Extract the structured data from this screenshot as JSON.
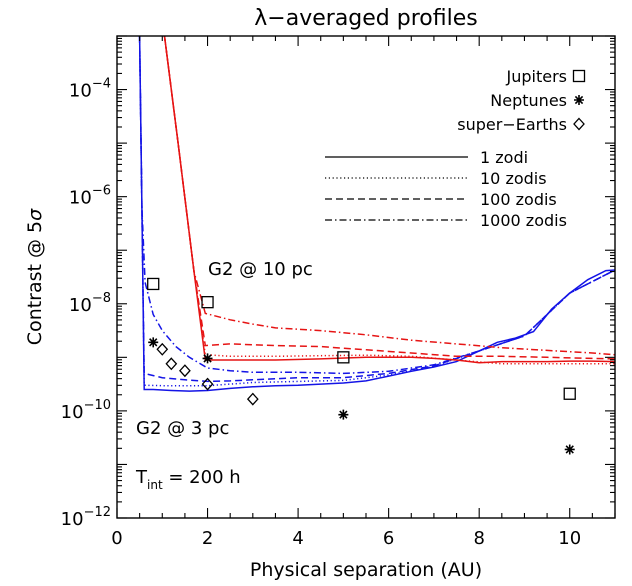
{
  "chart_data": {
    "type": "line",
    "title": "λ−averaged profiles",
    "xlabel": "Physical separation (AU)",
    "ylabel_main": "Contrast @ 5",
    "ylabel_sym": "σ",
    "xlim": [
      0,
      11
    ],
    "ylim_log10": [
      -12,
      -3
    ],
    "x_ticks": [
      0,
      2,
      4,
      6,
      8,
      10
    ],
    "y_tick_labels": [
      {
        "exp": -12,
        "base": "10",
        "pow": "−12"
      },
      {
        "exp": -10,
        "base": "10",
        "pow": "−10"
      },
      {
        "exp": -8,
        "base": "10",
        "pow": "−8"
      },
      {
        "exp": -6,
        "base": "10",
        "pow": "−6"
      },
      {
        "exp": -4,
        "base": "10",
        "pow": "−4"
      }
    ],
    "annotations": {
      "star_10pc": "G2 @ 10 pc",
      "star_3pc": "G2 @ 3 pc",
      "tint_main": "T",
      "tint_sub": "int",
      "tint_value": " = 200 h"
    },
    "planet_legend": [
      {
        "label": "Jupiters",
        "marker": "square"
      },
      {
        "label": "Neptunes",
        "marker": "asterisk"
      },
      {
        "label": "super−Earths",
        "marker": "diamond"
      }
    ],
    "zodi_legend": [
      {
        "label": "1 zodi",
        "dash": "solid"
      },
      {
        "label": "10 zodis",
        "dash": "dotted"
      },
      {
        "label": "100 zodis",
        "dash": "dashed"
      },
      {
        "label": "1000 zodis",
        "dash": "dashdot"
      }
    ],
    "colors": {
      "3pc": "#1414e6",
      "10pc": "#e61414",
      "axes": "#000000"
    },
    "series": [
      {
        "distance": "3pc",
        "zodi": "1 zodi",
        "dash": "solid",
        "points": [
          [
            0.5,
            -3
          ],
          [
            0.55,
            -6.2
          ],
          [
            0.6,
            -9.6
          ],
          [
            0.8,
            -9.6
          ],
          [
            1.2,
            -9.62
          ],
          [
            1.6,
            -9.63
          ],
          [
            2.0,
            -9.62
          ],
          [
            2.5,
            -9.58
          ],
          [
            3.0,
            -9.55
          ],
          [
            3.5,
            -9.53
          ],
          [
            4.0,
            -9.52
          ],
          [
            4.5,
            -9.5
          ],
          [
            5.0,
            -9.48
          ],
          [
            5.5,
            -9.44
          ],
          [
            6.0,
            -9.35
          ],
          [
            6.5,
            -9.26
          ],
          [
            7.0,
            -9.18
          ],
          [
            7.5,
            -9.08
          ],
          [
            8.0,
            -8.88
          ],
          [
            8.4,
            -8.72
          ],
          [
            8.8,
            -8.64
          ],
          [
            9.2,
            -8.52
          ],
          [
            9.6,
            -8.1
          ],
          [
            10.0,
            -7.8
          ],
          [
            10.4,
            -7.55
          ],
          [
            10.8,
            -7.38
          ],
          [
            11.0,
            -7.37
          ]
        ]
      },
      {
        "distance": "3pc",
        "zodi": "10 zodis",
        "dash": "dotted",
        "points": [
          [
            0.5,
            -3
          ],
          [
            0.55,
            -6.2
          ],
          [
            0.6,
            -9.52
          ],
          [
            1.0,
            -9.53
          ],
          [
            1.6,
            -9.53
          ],
          [
            2.0,
            -9.53
          ],
          [
            2.5,
            -9.5
          ],
          [
            3.0,
            -9.47
          ],
          [
            4.0,
            -9.45
          ],
          [
            5.0,
            -9.43
          ],
          [
            6.0,
            -9.33
          ],
          [
            7.0,
            -9.17
          ],
          [
            8.0,
            -8.88
          ],
          [
            9.0,
            -8.6
          ],
          [
            10.0,
            -7.8
          ],
          [
            11.0,
            -7.37
          ]
        ]
      },
      {
        "distance": "3pc",
        "zodi": "100 zodis",
        "dash": "dashed",
        "points": [
          [
            0.5,
            -3
          ],
          [
            0.55,
            -6.2
          ],
          [
            0.6,
            -9.3
          ],
          [
            1.0,
            -9.38
          ],
          [
            1.5,
            -9.42
          ],
          [
            2.0,
            -9.45
          ],
          [
            2.5,
            -9.44
          ],
          [
            3.0,
            -9.42
          ],
          [
            4.0,
            -9.38
          ],
          [
            5.0,
            -9.38
          ],
          [
            6.0,
            -9.3
          ],
          [
            7.0,
            -9.16
          ],
          [
            8.0,
            -8.88
          ],
          [
            9.0,
            -8.6
          ],
          [
            10.0,
            -7.8
          ],
          [
            11.0,
            -7.37
          ]
        ]
      },
      {
        "distance": "3pc",
        "zodi": "1000 zodis",
        "dash": "dashdot",
        "points": [
          [
            0.5,
            -3
          ],
          [
            0.55,
            -6.2
          ],
          [
            0.62,
            -7.6
          ],
          [
            0.8,
            -8.2
          ],
          [
            1.0,
            -8.5
          ],
          [
            1.3,
            -8.8
          ],
          [
            1.6,
            -9.0
          ],
          [
            2.0,
            -9.2
          ],
          [
            2.5,
            -9.25
          ],
          [
            3.0,
            -9.28
          ],
          [
            4.0,
            -9.28
          ],
          [
            5.0,
            -9.3
          ],
          [
            6.0,
            -9.26
          ],
          [
            7.0,
            -9.14
          ],
          [
            8.0,
            -8.88
          ],
          [
            9.0,
            -8.6
          ],
          [
            10.0,
            -7.8
          ],
          [
            11.0,
            -7.37
          ]
        ]
      },
      {
        "distance": "10pc",
        "zodi": "1 zodi",
        "dash": "solid",
        "points": [
          [
            1.05,
            -3
          ],
          [
            1.35,
            -5.0
          ],
          [
            1.7,
            -7.4
          ],
          [
            1.95,
            -9.05
          ],
          [
            2.5,
            -9.05
          ],
          [
            3.5,
            -9.05
          ],
          [
            4.5,
            -9.03
          ],
          [
            5.5,
            -9.0
          ],
          [
            6.5,
            -9.0
          ],
          [
            7.0,
            -9.02
          ],
          [
            7.5,
            -9.05
          ],
          [
            8.0,
            -9.1
          ],
          [
            8.5,
            -9.08
          ],
          [
            9.0,
            -9.08
          ],
          [
            9.5,
            -9.08
          ],
          [
            10.0,
            -9.07
          ],
          [
            10.5,
            -9.07
          ],
          [
            11.0,
            -9.08
          ]
        ]
      },
      {
        "distance": "10pc",
        "zodi": "10 zodis",
        "dash": "dotted",
        "points": [
          [
            1.05,
            -3
          ],
          [
            1.35,
            -5.0
          ],
          [
            1.7,
            -7.4
          ],
          [
            1.95,
            -8.95
          ],
          [
            2.5,
            -8.98
          ],
          [
            3.5,
            -8.98
          ],
          [
            4.5,
            -8.97
          ],
          [
            5.5,
            -8.96
          ],
          [
            6.5,
            -8.98
          ],
          [
            7.5,
            -9.05
          ],
          [
            8.5,
            -9.12
          ],
          [
            9.5,
            -9.12
          ],
          [
            10.5,
            -9.12
          ],
          [
            11.0,
            -9.12
          ]
        ]
      },
      {
        "distance": "10pc",
        "zodi": "100 zodis",
        "dash": "dashed",
        "points": [
          [
            1.05,
            -3
          ],
          [
            1.35,
            -5.0
          ],
          [
            1.7,
            -7.4
          ],
          [
            1.95,
            -8.78
          ],
          [
            2.5,
            -8.75
          ],
          [
            3.5,
            -8.78
          ],
          [
            4.5,
            -8.8
          ],
          [
            5.5,
            -8.86
          ],
          [
            6.5,
            -8.92
          ],
          [
            7.5,
            -8.98
          ],
          [
            8.5,
            -8.98
          ],
          [
            9.5,
            -9.0
          ],
          [
            10.5,
            -9.02
          ],
          [
            11.0,
            -9.03
          ]
        ]
      },
      {
        "distance": "10pc",
        "zodi": "1000 zodis",
        "dash": "dashdot",
        "points": [
          [
            1.05,
            -3
          ],
          [
            1.35,
            -5.0
          ],
          [
            1.7,
            -7.4
          ],
          [
            1.95,
            -8.18
          ],
          [
            2.5,
            -8.3
          ],
          [
            3.0,
            -8.38
          ],
          [
            3.5,
            -8.45
          ],
          [
            4.5,
            -8.5
          ],
          [
            5.5,
            -8.58
          ],
          [
            6.5,
            -8.68
          ],
          [
            7.5,
            -8.75
          ],
          [
            8.5,
            -8.82
          ],
          [
            9.5,
            -8.87
          ],
          [
            10.5,
            -8.92
          ],
          [
            11.0,
            -8.95
          ]
        ]
      }
    ],
    "planets": [
      {
        "type": "Jupiters",
        "marker": "square",
        "points": [
          [
            0.8,
            -7.63
          ],
          [
            2.0,
            -7.97
          ],
          [
            5.0,
            -9.0
          ],
          [
            10.0,
            -9.68
          ]
        ]
      },
      {
        "type": "Neptunes",
        "marker": "asterisk",
        "points": [
          [
            0.8,
            -8.72
          ],
          [
            2.0,
            -9.02
          ],
          [
            5.0,
            -10.07
          ],
          [
            10.0,
            -10.72
          ]
        ]
      },
      {
        "type": "super−Earths",
        "marker": "diamond",
        "points": [
          [
            1.0,
            -8.85
          ],
          [
            1.2,
            -9.12
          ],
          [
            1.5,
            -9.25
          ],
          [
            2.0,
            -9.5
          ],
          [
            3.0,
            -9.78
          ]
        ]
      }
    ]
  }
}
